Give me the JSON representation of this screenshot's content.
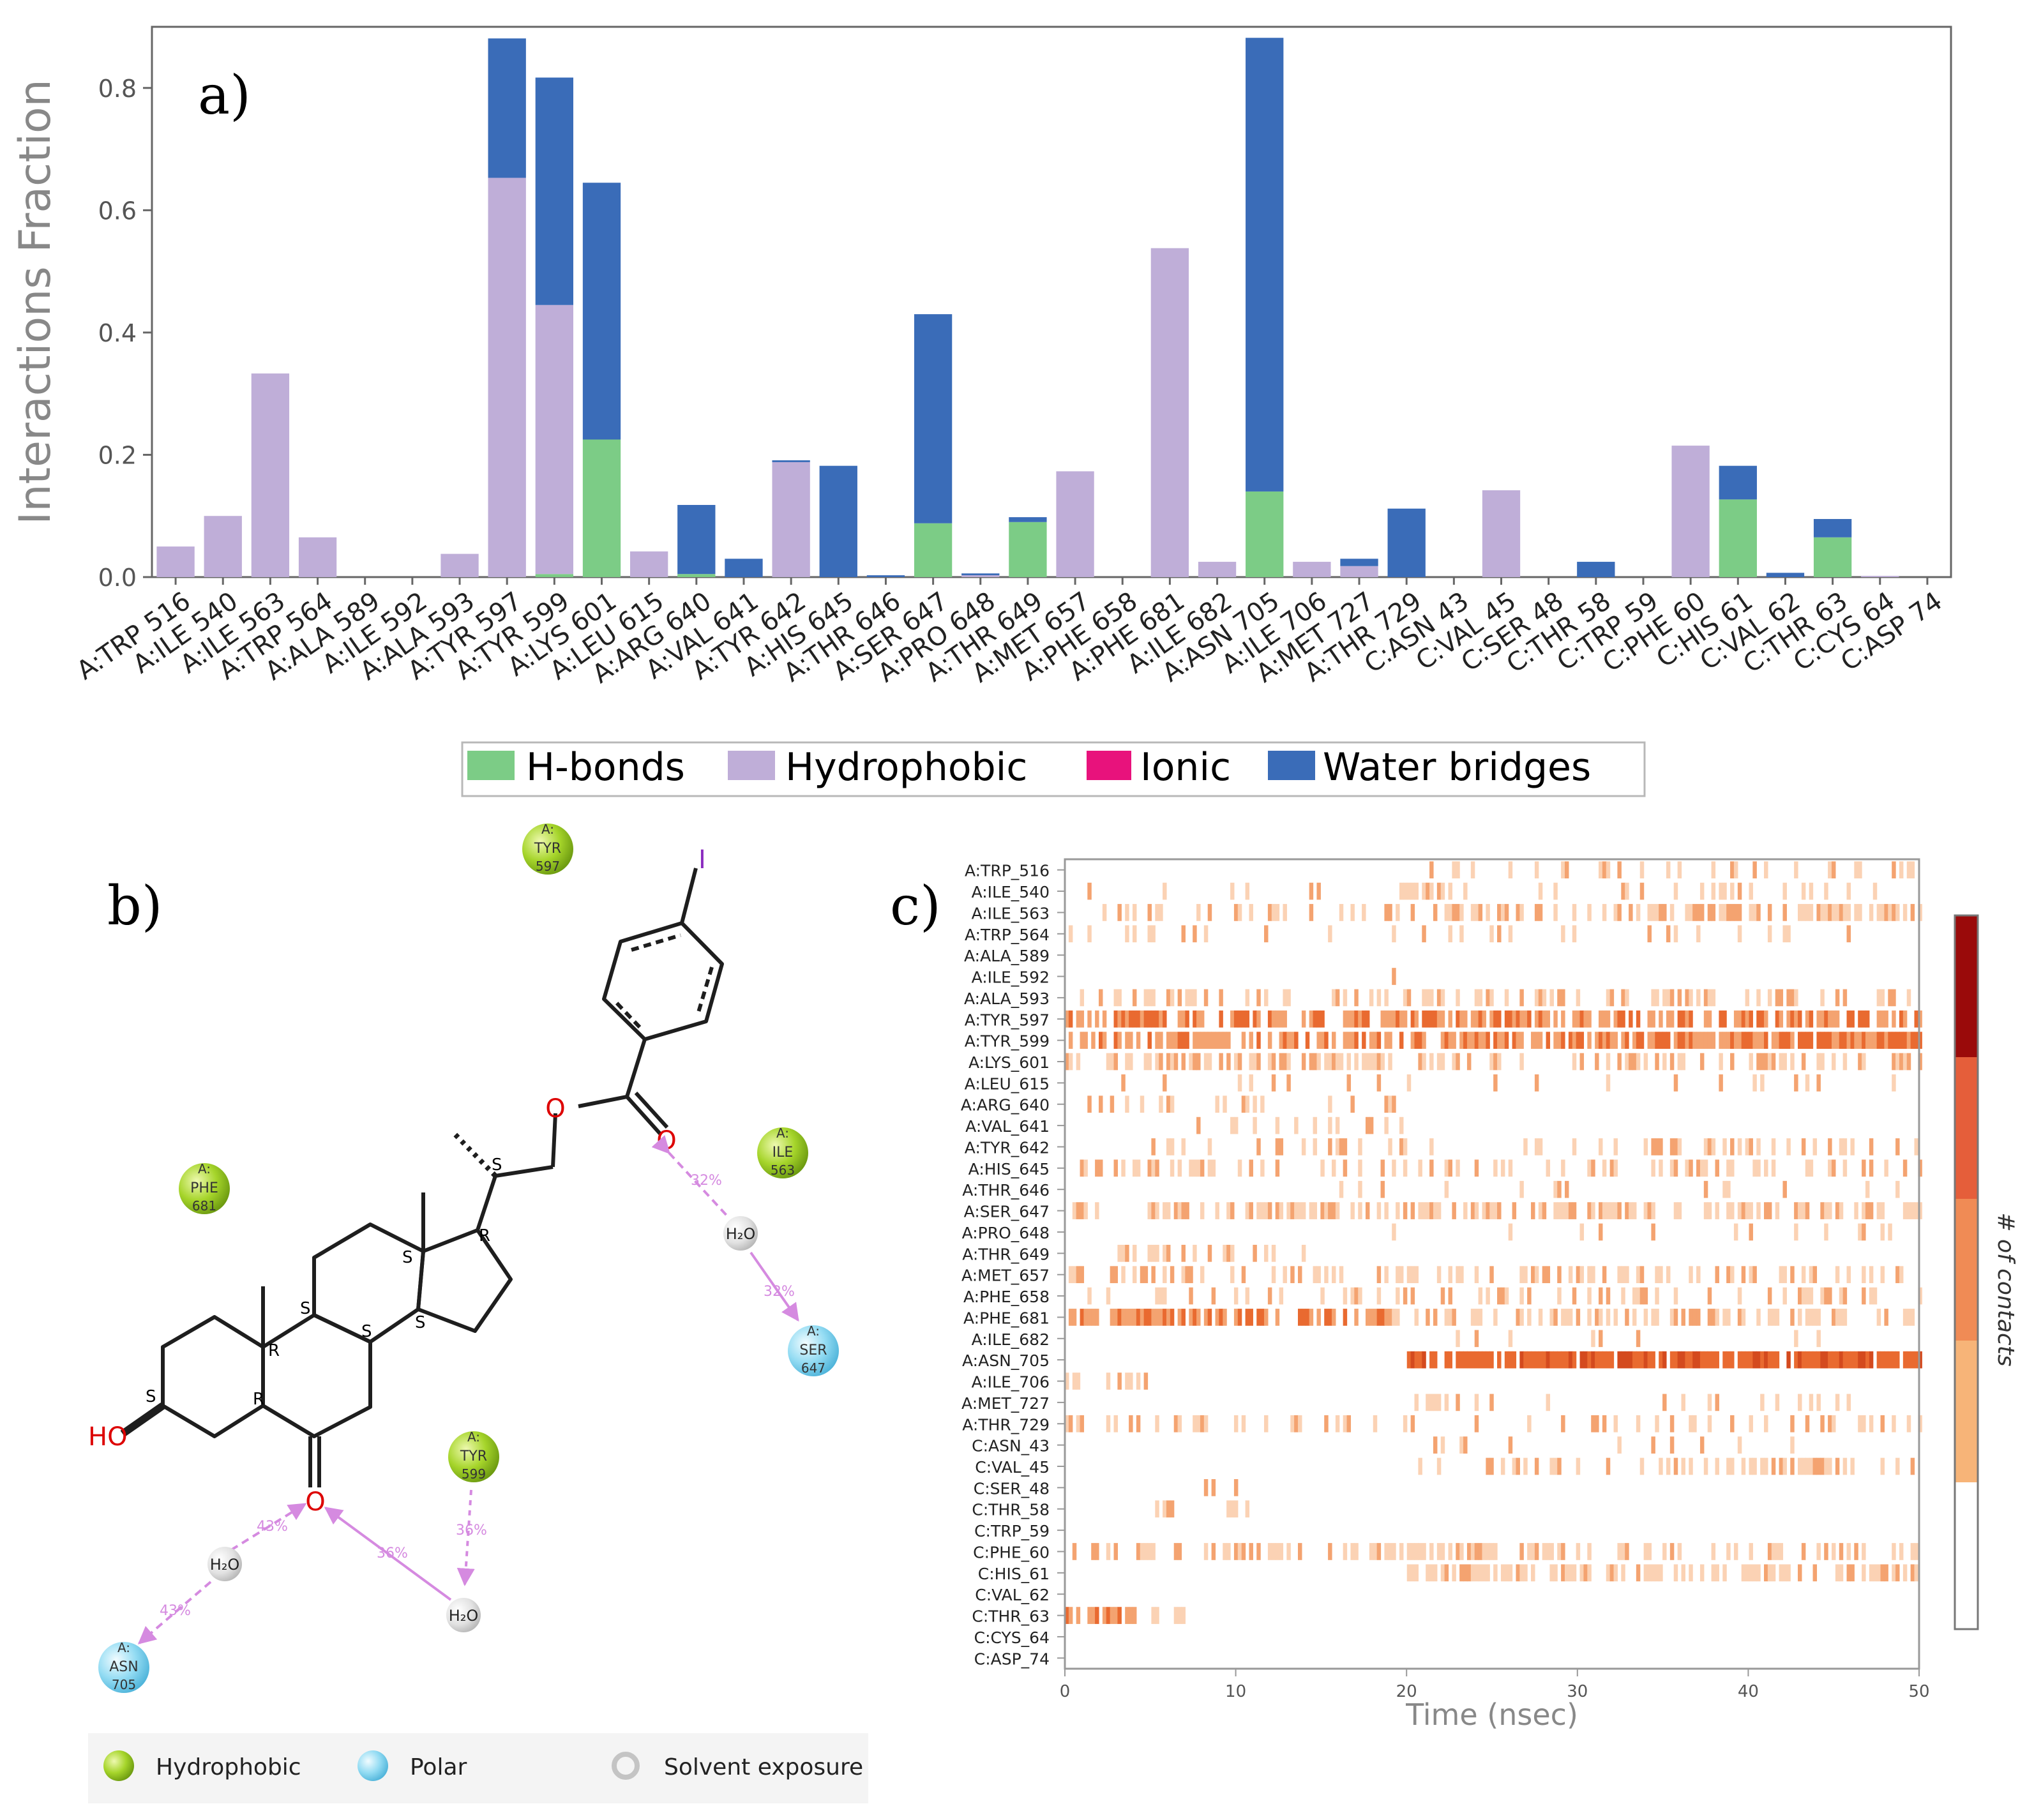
{
  "colors": {
    "hbond": "#7ccc86",
    "hydrophobic": "#bfaed8",
    "ionic": "#e8127c",
    "water": "#3a6cb8",
    "axis": "#555555",
    "hydrophobic_residue": "#9ccc1e",
    "polar_residue": "#7fd3f0",
    "solvent": "#cccccc",
    "oxygen": "#dd0000",
    "interaction_arrow": "#d58ae0",
    "contact_light": "#fbd2b4",
    "contact_mid": "#f4a370",
    "contact_dark": "#e96a30",
    "contact_darker": "#d44a1e",
    "contact_darkest": "#9a0a0a"
  },
  "panel_labels": {
    "a": "a)",
    "b": "b)",
    "c": "c)"
  },
  "chart_data": [
    {
      "id": "a",
      "type": "bar",
      "stacked": true,
      "title": "",
      "xlabel": "",
      "ylabel": "Interactions Fraction",
      "ylim": [
        0,
        0.9
      ],
      "yticks": [
        "0.0",
        "0.2",
        "0.4",
        "0.6",
        "0.8"
      ],
      "grid": false,
      "legend_position": "bottom-center",
      "categories": [
        "A:TRP 516",
        "A:ILE 540",
        "A:ILE 563",
        "A:TRP 564",
        "A:ALA 589",
        "A:ILE 592",
        "A:ALA 593",
        "A:TYR 597",
        "A:TYR 599",
        "A:LYS 601",
        "A:LEU 615",
        "A:ARG 640",
        "A:VAL 641",
        "A:TYR 642",
        "A:HIS 645",
        "A:THR 646",
        "A:SER 647",
        "A:PRO 648",
        "A:THR 649",
        "A:MET 657",
        "A:PHE 658",
        "A:PHE 681",
        "A:ILE 682",
        "A:ASN 705",
        "A:ILE 706",
        "A:MET 727",
        "A:THR 729",
        "C:ASN 43",
        "C:VAL 45",
        "C:SER 48",
        "C:THR 58",
        "C:TRP 59",
        "C:PHE 60",
        "C:HIS 61",
        "C:VAL 62",
        "C:THR 63",
        "C:CYS 64",
        "C:ASP 74"
      ],
      "series": [
        {
          "name": "H-bonds",
          "values": [
            0,
            0,
            0,
            0,
            0,
            0,
            0,
            0,
            0.005,
            0.225,
            0,
            0.005,
            0,
            0,
            0,
            0,
            0.088,
            0,
            0.09,
            0,
            0,
            0,
            0,
            0.14,
            0,
            0,
            0,
            0,
            0,
            0,
            0,
            0,
            0,
            0.127,
            0,
            0.065,
            0,
            0
          ]
        },
        {
          "name": "Hydrophobic",
          "values": [
            0.05,
            0.1,
            0.333,
            0.065,
            0,
            0,
            0.038,
            0.653,
            0.44,
            0,
            0.042,
            0,
            0,
            0.188,
            0,
            0,
            0,
            0.003,
            0,
            0.173,
            0,
            0.538,
            0.025,
            0,
            0.025,
            0.018,
            0,
            0,
            0.142,
            0,
            0,
            0,
            0.215,
            0,
            0,
            0,
            0.002,
            0
          ]
        },
        {
          "name": "Ionic",
          "values": [
            0,
            0,
            0,
            0,
            0,
            0,
            0,
            0,
            0,
            0,
            0,
            0,
            0,
            0,
            0,
            0,
            0,
            0,
            0,
            0,
            0,
            0,
            0,
            0,
            0,
            0,
            0,
            0,
            0,
            0,
            0,
            0,
            0,
            0,
            0,
            0,
            0,
            0
          ]
        },
        {
          "name": "Water bridges",
          "values": [
            0,
            0,
            0,
            0,
            0,
            0,
            0,
            0.228,
            0.372,
            0.42,
            0,
            0.113,
            0.03,
            0.003,
            0.182,
            0.003,
            0.342,
            0.003,
            0.008,
            0,
            0,
            0,
            0,
            0.742,
            0,
            0.012,
            0.112,
            0,
            0,
            0,
            0.025,
            0,
            0,
            0.055,
            0.007,
            0.03,
            0,
            0
          ]
        }
      ]
    },
    {
      "id": "c",
      "type": "heatmap",
      "title": "",
      "xlabel": "Time (nsec)",
      "ylabel": "",
      "xlim": [
        0,
        50
      ],
      "xticks": [
        "0",
        "10",
        "20",
        "30",
        "40",
        "50"
      ],
      "colorbar_label": "# of contacts",
      "rows": [
        "A:TRP_516",
        "A:ILE_540",
        "A:ILE_563",
        "A:TRP_564",
        "A:ALA_589",
        "A:ILE_592",
        "A:ALA_593",
        "A:TYR_597",
        "A:TYR_599",
        "A:LYS_601",
        "A:LEU_615",
        "A:ARG_640",
        "A:VAL_641",
        "A:TYR_642",
        "A:HIS_645",
        "A:THR_646",
        "A:SER_647",
        "A:PRO_648",
        "A:THR_649",
        "A:MET_657",
        "A:PHE_658",
        "A:PHE_681",
        "A:ILE_682",
        "A:ASN_705",
        "A:ILE_706",
        "A:MET_727",
        "A:THR_729",
        "C:ASN_43",
        "C:VAL_45",
        "C:SER_48",
        "C:THR_58",
        "C:TRP_59",
        "C:PHE_60",
        "C:HIS_61",
        "C:VAL_62",
        "C:THR_63",
        "C:CYS_64",
        "C:ASP_74"
      ],
      "occupied_ranges": [
        [
          [
            20,
            50,
            0.25
          ]
        ],
        [
          [
            0,
            50,
            0.12
          ],
          [
            19.5,
            24,
            0.5
          ]
        ],
        [
          [
            0,
            50,
            0.25
          ],
          [
            22,
            50,
            0.55
          ]
        ],
        [
          [
            0,
            50,
            0.12
          ]
        ],
        [
          [
            40,
            41,
            0.02
          ]
        ],
        [
          [
            19,
            20,
            0.02
          ]
        ],
        [
          [
            0,
            50,
            0.3
          ]
        ],
        [
          [
            0,
            50,
            0.7
          ]
        ],
        [
          [
            0,
            50,
            0.65
          ],
          [
            32,
            50,
            0.8
          ]
        ],
        [
          [
            0,
            19,
            0.55
          ],
          [
            19,
            50,
            0.3
          ],
          [
            32,
            50,
            0.45
          ]
        ],
        [
          [
            0,
            50,
            0.1
          ]
        ],
        [
          [
            1,
            20,
            0.2
          ],
          [
            9,
            12,
            0.45
          ]
        ],
        [
          [
            9,
            11,
            0.4
          ],
          [
            5,
            20,
            0.15
          ]
        ],
        [
          [
            5,
            50,
            0.25
          ]
        ],
        [
          [
            0,
            50,
            0.3
          ]
        ],
        [
          [
            15,
            50,
            0.08
          ]
        ],
        [
          [
            0,
            50,
            0.45
          ]
        ],
        [
          [
            18,
            50,
            0.05
          ]
        ],
        [
          [
            3,
            14,
            0.35
          ]
        ],
        [
          [
            0,
            50,
            0.3
          ]
        ],
        [
          [
            0,
            50,
            0.25
          ]
        ],
        [
          [
            0,
            19,
            0.7
          ],
          [
            19,
            50,
            0.45
          ]
        ],
        [
          [
            22,
            50,
            0.04
          ]
        ],
        [
          [
            20,
            50,
            0.9
          ]
        ],
        [
          [
            0,
            5,
            0.25
          ]
        ],
        [
          [
            20,
            50,
            0.12
          ]
        ],
        [
          [
            0,
            20,
            0.35
          ],
          [
            20,
            50,
            0.15
          ]
        ],
        [
          [
            20,
            50,
            0.06
          ]
        ],
        [
          [
            20,
            50,
            0.35
          ]
        ],
        [
          [
            4,
            12,
            0.05
          ]
        ],
        [
          [
            4,
            11,
            0.2
          ],
          [
            9,
            11,
            0.5
          ]
        ],
        [
          [
            14,
            20,
            0.05
          ]
        ],
        [
          [
            0,
            50,
            0.35
          ]
        ],
        [
          [
            20,
            50,
            0.55
          ]
        ],
        [
          [
            5,
            11,
            0.04
          ]
        ],
        [
          [
            0,
            7,
            0.3
          ],
          [
            0,
            4,
            0.8
          ]
        ],
        [
          [
            0,
            1,
            0.05
          ]
        ],
        [
          [
            0,
            1,
            0.02
          ]
        ]
      ]
    }
  ],
  "legend_a": [
    "H-bonds",
    "Hydrophobic",
    "Ionic",
    "Water bridges"
  ],
  "diagram": {
    "residues": [
      {
        "chain": "A:",
        "name": "TYR",
        "num": "597",
        "kind": "hydrophobic"
      },
      {
        "chain": "A:",
        "name": "PHE",
        "num": "681",
        "kind": "hydrophobic"
      },
      {
        "chain": "A:",
        "name": "ILE",
        "num": "563",
        "kind": "hydrophobic"
      },
      {
        "chain": "A:",
        "name": "SER",
        "num": "647",
        "kind": "polar"
      },
      {
        "chain": "A:",
        "name": "TYR",
        "num": "599",
        "kind": "hydrophobic"
      },
      {
        "chain": "A:",
        "name": "ASN",
        "num": "705",
        "kind": "polar"
      }
    ],
    "water_label": "H₂O",
    "percentages": [
      "32%",
      "32%",
      "43%",
      "43%",
      "36%",
      "36%"
    ],
    "atom_labels": {
      "iodine": "I",
      "ho": "HO",
      "oxygen": "O"
    },
    "stereo_labels": [
      "S",
      "S",
      "R",
      "R",
      "S",
      "S",
      "S",
      "R",
      "S",
      "S",
      "S"
    ],
    "legend": [
      "Hydrophobic",
      "Polar",
      "Solvent exposure"
    ]
  }
}
